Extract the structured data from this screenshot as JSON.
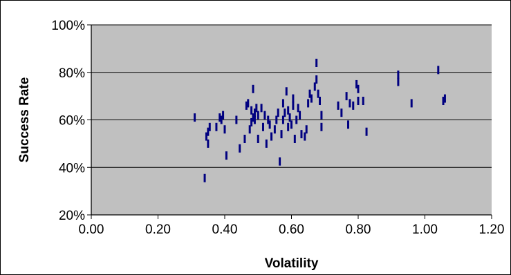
{
  "chart_data": {
    "type": "scatter",
    "title": "",
    "xlabel": "Volatility",
    "ylabel": "Success Rate",
    "xlim": [
      0,
      1.2
    ],
    "ylim": [
      0.2,
      1.0
    ],
    "x_ticks": [
      "0.00",
      "0.20",
      "0.40",
      "0.60",
      "0.80",
      "1.00",
      "1.20"
    ],
    "y_ticks": [
      "20%",
      "40%",
      "60%",
      "80%",
      "100%"
    ],
    "grid": "horizontal",
    "legend": "none",
    "colors": {
      "plot_area": "#c0c0c0",
      "marker": "#000080",
      "gridline": "#000000"
    },
    "series": [
      {
        "marker": "dash",
        "x": [
          0.31,
          0.34,
          0.345,
          0.35,
          0.35,
          0.355,
          0.375,
          0.385,
          0.39,
          0.395,
          0.4,
          0.405,
          0.435,
          0.445,
          0.46,
          0.465,
          0.47,
          0.475,
          0.48,
          0.48,
          0.485,
          0.485,
          0.49,
          0.49,
          0.495,
          0.5,
          0.5,
          0.51,
          0.515,
          0.52,
          0.525,
          0.53,
          0.535,
          0.54,
          0.55,
          0.555,
          0.56,
          0.565,
          0.57,
          0.575,
          0.575,
          0.58,
          0.585,
          0.59,
          0.59,
          0.595,
          0.6,
          0.605,
          0.605,
          0.61,
          0.615,
          0.62,
          0.625,
          0.63,
          0.64,
          0.645,
          0.65,
          0.655,
          0.66,
          0.67,
          0.675,
          0.675,
          0.68,
          0.685,
          0.69,
          0.69,
          0.74,
          0.75,
          0.765,
          0.77,
          0.775,
          0.785,
          0.795,
          0.8,
          0.8,
          0.815,
          0.825,
          0.92,
          0.92,
          0.96,
          1.04,
          1.055,
          1.06
        ],
        "y": [
          0.61,
          0.355,
          0.53,
          0.55,
          0.5,
          0.57,
          0.57,
          0.61,
          0.6,
          0.62,
          0.56,
          0.45,
          0.6,
          0.48,
          0.52,
          0.66,
          0.67,
          0.56,
          0.64,
          0.59,
          0.73,
          0.61,
          0.63,
          0.6,
          0.65,
          0.62,
          0.52,
          0.65,
          0.57,
          0.62,
          0.5,
          0.6,
          0.58,
          0.53,
          0.56,
          0.6,
          0.63,
          0.425,
          0.54,
          0.67,
          0.6,
          0.63,
          0.72,
          0.64,
          0.57,
          0.61,
          0.58,
          0.69,
          0.66,
          0.52,
          0.6,
          0.65,
          0.62,
          0.54,
          0.53,
          0.56,
          0.67,
          0.71,
          0.69,
          0.74,
          0.84,
          0.77,
          0.71,
          0.68,
          0.62,
          0.57,
          0.66,
          0.63,
          0.7,
          0.58,
          0.67,
          0.66,
          0.75,
          0.73,
          0.68,
          0.68,
          0.55,
          0.79,
          0.76,
          0.67,
          0.81,
          0.68,
          0.69
        ]
      }
    ]
  }
}
